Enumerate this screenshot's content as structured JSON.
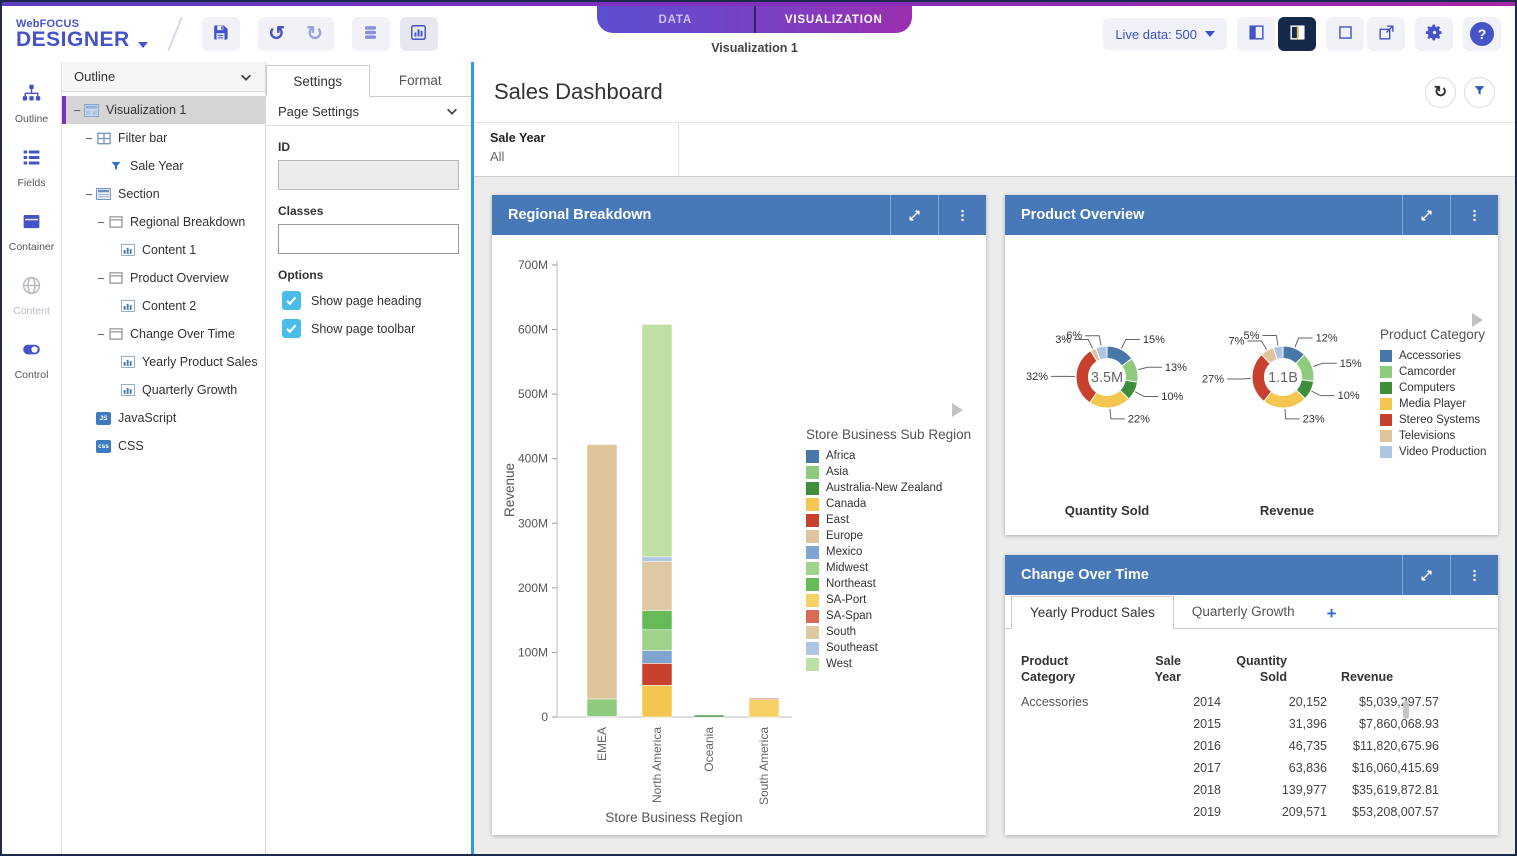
{
  "colors": {
    "accent": "#4553C8",
    "panel_header_blue": "#4779B8",
    "selection_blue": "#2E9BE6",
    "checkbox_blue": "#49BCE8",
    "canvas_gray": "#ECECEC",
    "selected_row_accent": "#7B2FBE",
    "dark_button": "#16294A",
    "tab_gradient": [
      "#5B4FD0",
      "#9B2FAE"
    ]
  },
  "topbar": {
    "brand_top": "WebFOCUS",
    "brand_bottom": "DESIGNER",
    "tabs": {
      "data": "DATA",
      "visualization": "VISUALIZATION"
    },
    "doc_title": "Visualization 1",
    "live_data": "Live data: 500",
    "left_icons": [
      "save-icon",
      "undo-icon",
      "redo-icon",
      "data-source-icon",
      "chart-icon"
    ],
    "right_icons": [
      "split-left-icon",
      "split-right-icon",
      "window-icon",
      "open-new-window-icon",
      "settings-gear-icon",
      "help-icon"
    ]
  },
  "rail": {
    "items": [
      {
        "label": "Outline",
        "icon": "outline-tree-icon",
        "active": true,
        "enabled": true
      },
      {
        "label": "Fields",
        "icon": "fields-list-icon",
        "enabled": true
      },
      {
        "label": "Container",
        "icon": "container-icon",
        "enabled": true
      },
      {
        "label": "Content",
        "icon": "content-globe-icon",
        "enabled": false
      },
      {
        "label": "Control",
        "icon": "control-toggle-icon",
        "enabled": true
      }
    ]
  },
  "outline": {
    "header": "Outline",
    "tree": [
      {
        "label": "Visualization 1",
        "level": 0,
        "icon": "visualization-icon",
        "collapse": true,
        "selected": true
      },
      {
        "label": "Filter bar",
        "level": 1,
        "icon": "filter-bar-icon",
        "collapse": true
      },
      {
        "label": "Sale Year",
        "level": 2,
        "icon": "filter-funnel-icon"
      },
      {
        "label": "Section",
        "level": 1,
        "icon": "section-icon",
        "collapse": true
      },
      {
        "label": "Regional Breakdown",
        "level": 2,
        "icon": "panel-frame-icon",
        "collapse": true
      },
      {
        "label": "Content 1",
        "level": 3,
        "icon": "content-chart-icon"
      },
      {
        "label": "Product Overview",
        "level": 2,
        "icon": "panel-frame-icon",
        "collapse": true
      },
      {
        "label": "Content 2",
        "level": 3,
        "icon": "content-chart-icon"
      },
      {
        "label": "Change Over Time",
        "level": 2,
        "icon": "panel-frame-icon",
        "collapse": true
      },
      {
        "label": "Yearly Product Sales",
        "level": 3,
        "icon": "content-chart-icon"
      },
      {
        "label": "Quarterly Growth",
        "level": 3,
        "icon": "content-chart-icon"
      },
      {
        "label": "JavaScript",
        "level": 1,
        "icon": "js-icon"
      },
      {
        "label": "CSS",
        "level": 1,
        "icon": "css-icon"
      }
    ]
  },
  "settings": {
    "tabs": [
      "Settings",
      "Format"
    ],
    "active_tab": "Settings",
    "section": "Page Settings",
    "id_label": "ID",
    "id_value": "",
    "classes_label": "Classes",
    "classes_value": "",
    "options_label": "Options",
    "options": [
      {
        "label": "Show page heading",
        "checked": true
      },
      {
        "label": "Show page toolbar",
        "checked": true
      }
    ]
  },
  "page": {
    "title": "Sales Dashboard",
    "toolbar_icons": [
      "refresh-icon",
      "filter-funnel-icon"
    ],
    "filter": {
      "label": "Sale Year",
      "value": "All"
    }
  },
  "panels": {
    "regional": {
      "title": "Regional Breakdown",
      "header_icons": [
        "expand-icon",
        "kebab-menu-icon"
      ]
    },
    "product": {
      "title": "Product Overview",
      "legend_title": "Product Category",
      "header_icons": [
        "expand-icon",
        "kebab-menu-icon"
      ]
    },
    "change": {
      "title": "Change Over Time",
      "tabs": [
        "Yearly Product Sales",
        "Quarterly Growth"
      ],
      "active_tab": "Yearly Product Sales",
      "add_label": "+",
      "header_icons": [
        "expand-icon",
        "kebab-menu-icon"
      ]
    }
  },
  "chart_data": [
    {
      "name": "regional-breakdown",
      "type": "bar",
      "stacked": true,
      "unit": "millions",
      "title": "Regional Breakdown",
      "xlabel": "Store Business Region",
      "ylabel": "Revenue",
      "categories": [
        "EMEA",
        "North America",
        "Oceania",
        "South America"
      ],
      "ylim": [
        0,
        700
      ],
      "yticks": [
        {
          "v": 700,
          "label": "700M"
        },
        {
          "v": 600,
          "label": "600M"
        },
        {
          "v": 500,
          "label": "500M"
        },
        {
          "v": 400,
          "label": "400M"
        },
        {
          "v": 300,
          "label": "300M"
        },
        {
          "v": 200,
          "label": "200M"
        },
        {
          "v": 100,
          "label": "100M"
        },
        {
          "v": 0,
          "label": "0"
        }
      ],
      "legend_title": "Store Business Sub Region",
      "legend_position": "right",
      "series": [
        {
          "name": "Africa",
          "color": "#4878A8",
          "values": [
            1,
            0,
            0,
            0
          ]
        },
        {
          "name": "Asia",
          "color": "#8FCB7E",
          "values": [
            27,
            0,
            0,
            0
          ]
        },
        {
          "name": "Australia-New Zealand",
          "color": "#3E8E3A",
          "values": [
            0,
            0,
            3,
            0
          ]
        },
        {
          "name": "Canada",
          "color": "#F3C74F",
          "values": [
            0,
            49,
            0,
            0
          ]
        },
        {
          "name": "East",
          "color": "#C8402E",
          "values": [
            0,
            34,
            0,
            0
          ]
        },
        {
          "name": "Europe",
          "color": "#DFC49C",
          "values": [
            394,
            0,
            0,
            0
          ]
        },
        {
          "name": "Mexico",
          "color": "#80A4D0",
          "values": [
            0,
            20,
            0,
            0
          ]
        },
        {
          "name": "Midwest",
          "color": "#9ED389",
          "values": [
            0,
            32,
            0,
            0
          ]
        },
        {
          "name": "Northeast",
          "color": "#66BB58",
          "values": [
            0,
            30,
            0,
            0
          ]
        },
        {
          "name": "SA-Port",
          "color": "#F6D166",
          "values": [
            0,
            0,
            0,
            27
          ]
        },
        {
          "name": "SA-Span",
          "color": "#D96A55",
          "values": [
            0,
            0,
            0,
            2
          ]
        },
        {
          "name": "South",
          "color": "#DFC9A2",
          "values": [
            0,
            76,
            0,
            0
          ]
        },
        {
          "name": "Southeast",
          "color": "#AEC6E2",
          "values": [
            0,
            7,
            0,
            0
          ]
        },
        {
          "name": "West",
          "color": "#BFE0A5",
          "values": [
            0,
            360,
            0,
            0
          ]
        }
      ]
    },
    {
      "name": "quantity-sold-donut",
      "type": "pie",
      "donut": true,
      "title": "Quantity Sold",
      "center_label": "3.5M",
      "categories": [
        "Accessories",
        "Camcorder",
        "Computers",
        "Media Player",
        "Stereo Systems",
        "Televisions",
        "Video Production"
      ],
      "values": [
        15,
        13,
        10,
        22,
        32,
        3,
        6
      ],
      "labels": [
        "15%",
        "13%",
        "10%",
        "22%",
        "32%",
        "3%",
        "6%"
      ],
      "colors": [
        "#4878A8",
        "#8FCB7E",
        "#3E8E3A",
        "#F3C74F",
        "#C8402E",
        "#DFC49C",
        "#AEC6E2"
      ]
    },
    {
      "name": "revenue-donut",
      "type": "pie",
      "donut": true,
      "title": "Revenue",
      "center_label": "1.1B",
      "categories": [
        "Accessories",
        "Camcorder",
        "Computers",
        "Media Player",
        "Stereo Systems",
        "Televisions",
        "Video Production"
      ],
      "values": [
        12,
        15,
        10,
        23,
        27,
        7,
        5
      ],
      "labels": [
        "12%",
        "15%",
        "10%",
        "23%",
        "27%",
        "7%",
        "5%"
      ],
      "colors": [
        "#4878A8",
        "#8FCB7E",
        "#3E8E3A",
        "#F3C74F",
        "#C8402E",
        "#DFC49C",
        "#AEC6E2"
      ]
    },
    {
      "name": "yearly-product-sales-table",
      "type": "table",
      "columns": [
        "Product\nCategory",
        "Sale\nYear",
        "Quantity\nSold",
        "Revenue"
      ],
      "rows": [
        [
          "Accessories",
          "2014",
          "20,152",
          "$5,039,297.57"
        ],
        [
          "",
          "2015",
          "31,396",
          "$7,860,068.93"
        ],
        [
          "",
          "2016",
          "46,735",
          "$11,820,675.96"
        ],
        [
          "",
          "2017",
          "63,836",
          "$16,060,415.69"
        ],
        [
          "",
          "2018",
          "139,977",
          "$35,619,872.81"
        ],
        [
          "",
          "2019",
          "209,571",
          "$53,208,007.57"
        ]
      ]
    }
  ]
}
